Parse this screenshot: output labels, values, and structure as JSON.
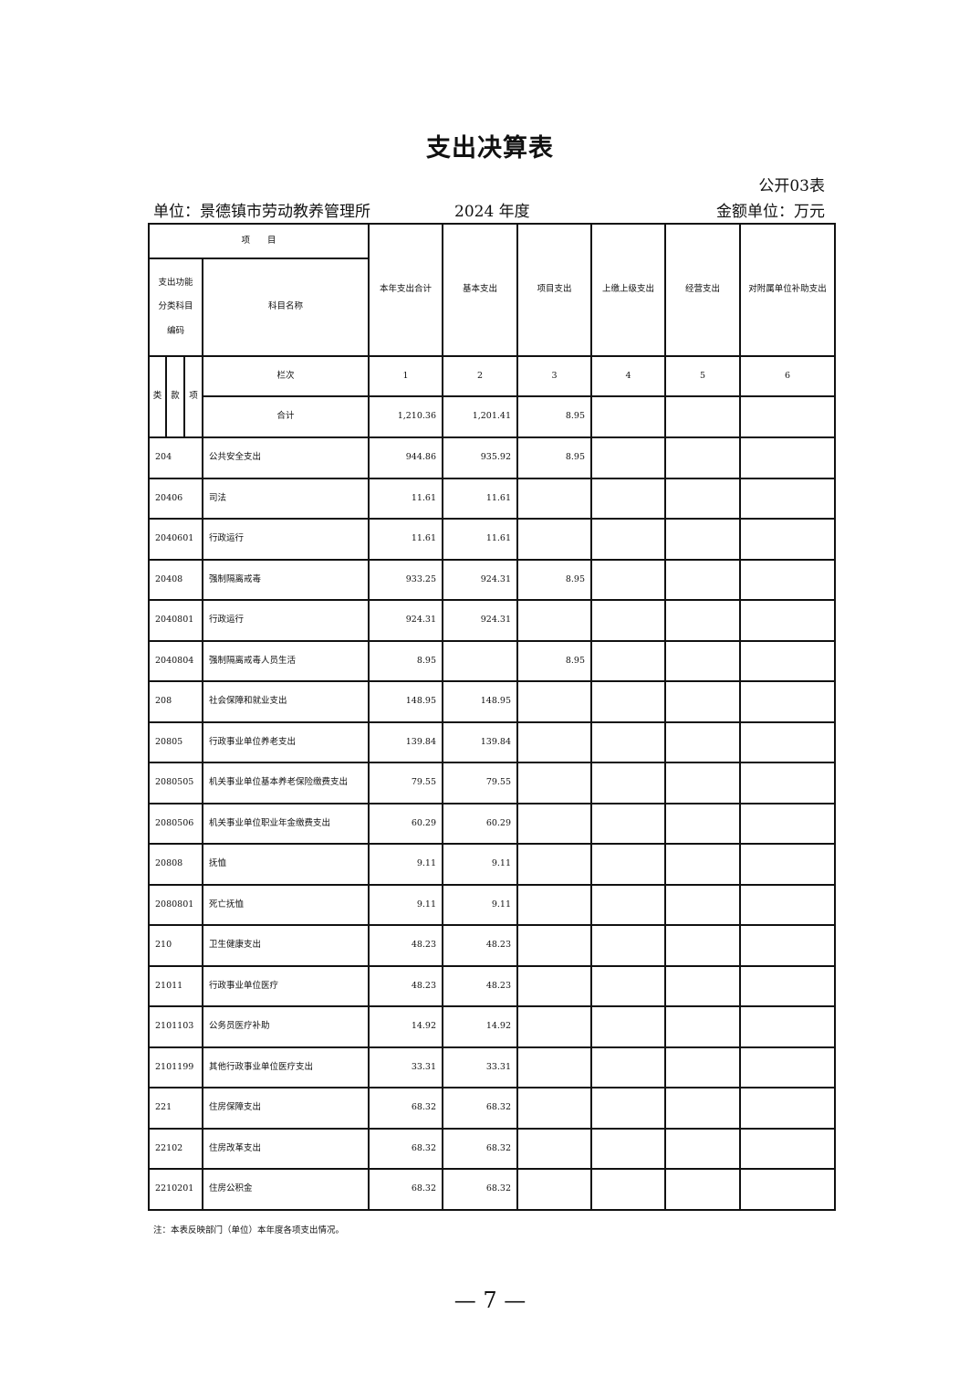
{
  "title": "支出决算表",
  "form_no": "公开03表",
  "unit": "单位：景德镇市劳动教养管理所",
  "year": "2024 年度",
  "money_unit": "金额单位：万元",
  "header": {
    "item": "项　　目",
    "code": "支出功能分类科目编码",
    "name": "科目名称",
    "cols": [
      "本年支出合计",
      "基本支出",
      "项目支出",
      "上缴上级支出",
      "经营支出",
      "对附属单位补助支出"
    ],
    "lei": "类",
    "kuan": "款",
    "xiang": "项",
    "lanci": "栏次",
    "col_nums": [
      "1",
      "2",
      "3",
      "4",
      "5",
      "6"
    ],
    "total_label": "合计",
    "totals": [
      "1,210.36",
      "1,201.41",
      "8.95",
      "",
      "",
      ""
    ]
  },
  "rows": [
    {
      "code": "204",
      "name": "公共安全支出",
      "v": [
        "944.86",
        "935.92",
        "8.95",
        "",
        "",
        ""
      ]
    },
    {
      "code": "20406",
      "name": "司法",
      "v": [
        "11.61",
        "11.61",
        "",
        "",
        "",
        ""
      ]
    },
    {
      "code": "2040601",
      "name": "行政运行",
      "v": [
        "11.61",
        "11.61",
        "",
        "",
        "",
        ""
      ]
    },
    {
      "code": "20408",
      "name": "强制隔离戒毒",
      "v": [
        "933.25",
        "924.31",
        "8.95",
        "",
        "",
        ""
      ]
    },
    {
      "code": "2040801",
      "name": "行政运行",
      "v": [
        "924.31",
        "924.31",
        "",
        "",
        "",
        ""
      ]
    },
    {
      "code": "2040804",
      "name": "强制隔离戒毒人员生活",
      "v": [
        "8.95",
        "",
        "8.95",
        "",
        "",
        ""
      ]
    },
    {
      "code": "208",
      "name": "社会保障和就业支出",
      "v": [
        "148.95",
        "148.95",
        "",
        "",
        "",
        ""
      ]
    },
    {
      "code": "20805",
      "name": "行政事业单位养老支出",
      "v": [
        "139.84",
        "139.84",
        "",
        "",
        "",
        ""
      ]
    },
    {
      "code": "2080505",
      "name": "机关事业单位基本养老保险缴费支出",
      "v": [
        "79.55",
        "79.55",
        "",
        "",
        "",
        ""
      ]
    },
    {
      "code": "2080506",
      "name": "机关事业单位职业年金缴费支出",
      "v": [
        "60.29",
        "60.29",
        "",
        "",
        "",
        ""
      ]
    },
    {
      "code": "20808",
      "name": "抚恤",
      "v": [
        "9.11",
        "9.11",
        "",
        "",
        "",
        ""
      ]
    },
    {
      "code": "2080801",
      "name": "死亡抚恤",
      "v": [
        "9.11",
        "9.11",
        "",
        "",
        "",
        ""
      ]
    },
    {
      "code": "210",
      "name": "卫生健康支出",
      "v": [
        "48.23",
        "48.23",
        "",
        "",
        "",
        ""
      ]
    },
    {
      "code": "21011",
      "name": "行政事业单位医疗",
      "v": [
        "48.23",
        "48.23",
        "",
        "",
        "",
        ""
      ]
    },
    {
      "code": "2101103",
      "name": "公务员医疗补助",
      "v": [
        "14.92",
        "14.92",
        "",
        "",
        "",
        ""
      ]
    },
    {
      "code": "2101199",
      "name": "其他行政事业单位医疗支出",
      "v": [
        "33.31",
        "33.31",
        "",
        "",
        "",
        ""
      ]
    },
    {
      "code": "221",
      "name": "住房保障支出",
      "v": [
        "68.32",
        "68.32",
        "",
        "",
        "",
        ""
      ]
    },
    {
      "code": "22102",
      "name": "住房改革支出",
      "v": [
        "68.32",
        "68.32",
        "",
        "",
        "",
        ""
      ]
    },
    {
      "code": "2210201",
      "name": "住房公积金",
      "v": [
        "68.32",
        "68.32",
        "",
        "",
        "",
        ""
      ]
    }
  ],
  "note": "注：本表反映部门（单位）本年度各项支出情况。",
  "page_number": "— 7 —"
}
